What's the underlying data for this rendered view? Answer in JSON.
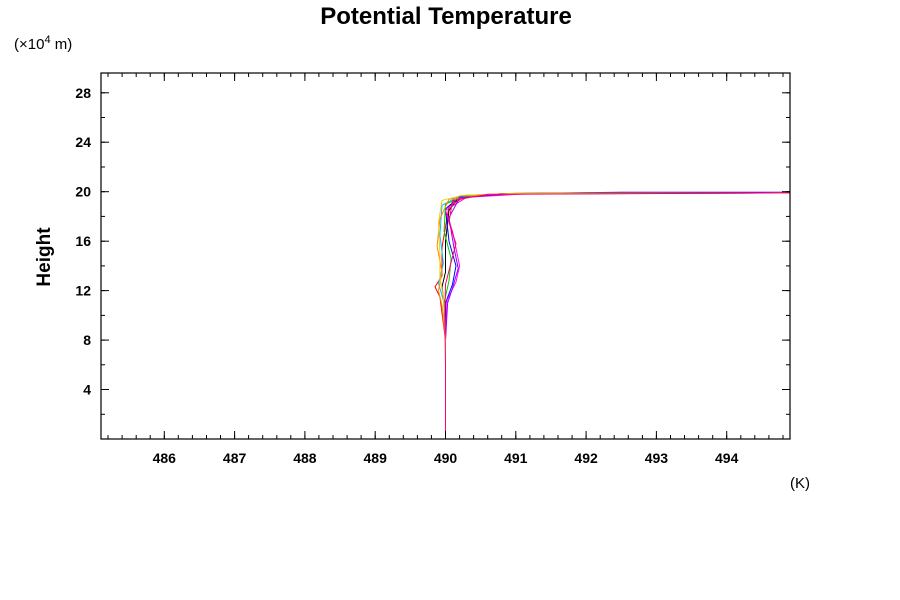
{
  "chart_data": {
    "type": "line",
    "title": "Potential Temperature",
    "ylabel": "Height",
    "y_unit_prefix": "(×10",
    "y_unit_exponent": "4",
    "y_unit_suffix": " m)",
    "x_unit": "(K)",
    "xlim": [
      485.1,
      494.9
    ],
    "ylim": [
      0,
      29.6
    ],
    "x_ticks": [
      486,
      487,
      488,
      489,
      490,
      491,
      492,
      493,
      494
    ],
    "x_tick_labels": [
      "486",
      "487",
      "488",
      "489",
      "490",
      "491",
      "492",
      "493",
      "494"
    ],
    "x_minor_step": 0.2,
    "y_ticks": [
      4,
      8,
      12,
      16,
      20,
      24,
      28
    ],
    "y_tick_labels": [
      "4",
      "8",
      "12",
      "16",
      "20",
      "24",
      "28"
    ],
    "y_minor_step": 2,
    "grid": false,
    "legend": "none",
    "series": [
      {
        "color": "#000000",
        "points": [
          [
            490.0,
            0
          ],
          [
            490.0,
            8
          ],
          [
            489.98,
            11
          ],
          [
            489.95,
            12.3
          ],
          [
            490.0,
            13.5
          ],
          [
            490.0,
            16
          ],
          [
            490.05,
            18.5
          ],
          [
            490.2,
            19.6
          ],
          [
            490.8,
            19.85
          ],
          [
            492.0,
            19.9
          ],
          [
            494.9,
            19.92
          ]
        ]
      },
      {
        "color": "#ff0000",
        "points": [
          [
            490.0,
            0
          ],
          [
            490.0,
            8
          ],
          [
            489.92,
            11.5
          ],
          [
            489.85,
            12.3
          ],
          [
            489.95,
            13.2
          ],
          [
            489.95,
            15.5
          ],
          [
            490.05,
            18.8
          ],
          [
            490.3,
            19.7
          ],
          [
            491.0,
            19.85
          ],
          [
            494.9,
            19.9
          ]
        ]
      },
      {
        "color": "#0000ff",
        "points": [
          [
            490.0,
            0
          ],
          [
            490.0,
            8
          ],
          [
            490.0,
            11
          ],
          [
            490.1,
            12.5
          ],
          [
            490.15,
            14
          ],
          [
            490.05,
            16
          ],
          [
            490.0,
            18.6
          ],
          [
            490.2,
            19.6
          ],
          [
            490.9,
            19.85
          ],
          [
            492.5,
            19.95
          ],
          [
            494.9,
            19.95
          ]
        ]
      },
      {
        "color": "#00c0ff",
        "points": [
          [
            490.0,
            0
          ],
          [
            490.0,
            8
          ],
          [
            489.97,
            11.2
          ],
          [
            489.9,
            12.6
          ],
          [
            489.97,
            14.2
          ],
          [
            489.92,
            16.5
          ],
          [
            489.95,
            18.9
          ],
          [
            490.2,
            19.65
          ],
          [
            491.0,
            19.85
          ],
          [
            494.9,
            19.9
          ]
        ]
      },
      {
        "color": "#ff00ff",
        "points": [
          [
            490.0,
            0
          ],
          [
            490.0,
            8
          ],
          [
            490.02,
            11.2
          ],
          [
            490.15,
            12.7
          ],
          [
            490.2,
            14.0
          ],
          [
            490.1,
            16.8
          ],
          [
            490.0,
            18.5
          ],
          [
            490.3,
            19.55
          ],
          [
            491.2,
            19.85
          ],
          [
            494.9,
            19.92
          ]
        ]
      },
      {
        "color": "#00cc00",
        "points": [
          [
            490.0,
            0
          ],
          [
            490.0,
            8
          ],
          [
            489.98,
            11.0
          ],
          [
            490.05,
            12.8
          ],
          [
            490.08,
            14.6
          ],
          [
            489.98,
            16.8
          ],
          [
            490.0,
            19.0
          ],
          [
            490.3,
            19.7
          ],
          [
            491.0,
            19.86
          ],
          [
            494.9,
            19.9
          ]
        ]
      },
      {
        "color": "#ff8800",
        "points": [
          [
            490.0,
            0
          ],
          [
            490.0,
            8
          ],
          [
            489.95,
            10.8
          ],
          [
            489.9,
            12.0
          ],
          [
            489.95,
            13.5
          ],
          [
            489.88,
            15.6
          ],
          [
            489.92,
            17.8
          ],
          [
            490.05,
            19.4
          ],
          [
            490.6,
            19.8
          ],
          [
            494.9,
            19.9
          ]
        ]
      },
      {
        "color": "#8800ff",
        "points": [
          [
            490.0,
            0
          ],
          [
            490.0,
            8
          ],
          [
            490.03,
            11.0
          ],
          [
            490.1,
            12.2
          ],
          [
            490.18,
            13.8
          ],
          [
            490.12,
            15.5
          ],
          [
            490.05,
            17.9
          ],
          [
            490.2,
            19.5
          ],
          [
            490.9,
            19.82
          ],
          [
            494.9,
            19.9
          ]
        ]
      },
      {
        "color": "#ffcc00",
        "points": [
          [
            490.0,
            0
          ],
          [
            490.0,
            8
          ],
          [
            489.97,
            11.5
          ],
          [
            489.92,
            13.0
          ],
          [
            489.92,
            15.0
          ],
          [
            489.9,
            17.5
          ],
          [
            489.95,
            19.3
          ],
          [
            490.25,
            19.72
          ],
          [
            491.0,
            19.86
          ],
          [
            494.9,
            19.9
          ]
        ]
      },
      {
        "color": "#ff0066",
        "points": [
          [
            490.0,
            0
          ],
          [
            490.0,
            6
          ],
          [
            489.99,
            10
          ],
          [
            490.0,
            12.5
          ],
          [
            490.08,
            14.3
          ],
          [
            490.15,
            15.8
          ],
          [
            490.05,
            17.5
          ],
          [
            490.1,
            19.3
          ],
          [
            490.6,
            19.78
          ],
          [
            494.9,
            19.9
          ]
        ]
      }
    ]
  }
}
